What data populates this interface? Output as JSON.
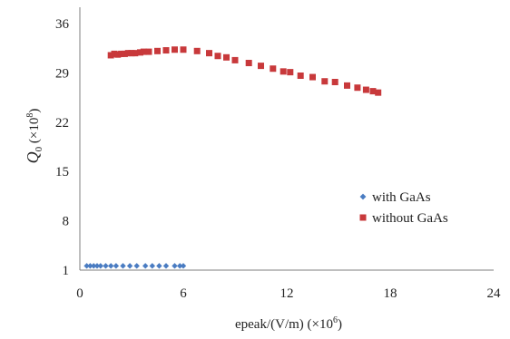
{
  "chart_data": {
    "type": "scatter",
    "xlabel": "epeak/(V/m)",
    "xlabel_multiplier": "(×10",
    "xlabel_multiplier_exp": "6",
    "xlabel_multiplier_close": ")",
    "ylabel_symbol": "Q",
    "ylabel_subscript": "0",
    "ylabel_multiplier": "(×10",
    "ylabel_multiplier_exp": "8",
    "ylabel_multiplier_close": ")",
    "xlim": [
      0,
      24
    ],
    "ylim": [
      1,
      36
    ],
    "x_ticks": [
      "0",
      "6",
      "12",
      "18",
      "24"
    ],
    "y_ticks": [
      "1",
      "8",
      "15",
      "22",
      "29",
      "36"
    ],
    "grid": false,
    "legend_position": "right-center",
    "series": [
      {
        "name": "with GaAs",
        "marker": "diamond",
        "color": "#4a7cc2",
        "x": [
          0.4,
          0.6,
          0.8,
          1.0,
          1.2,
          1.5,
          1.8,
          2.1,
          2.5,
          2.9,
          3.3,
          3.8,
          4.2,
          4.6,
          5.0,
          5.5,
          5.8,
          6.0
        ],
        "y": [
          1.6,
          1.6,
          1.6,
          1.6,
          1.6,
          1.6,
          1.6,
          1.6,
          1.6,
          1.6,
          1.6,
          1.6,
          1.6,
          1.6,
          1.6,
          1.6,
          1.6,
          1.6
        ]
      },
      {
        "name": "without GaAs",
        "marker": "square",
        "color": "#c8393b",
        "x": [
          1.8,
          2.0,
          2.2,
          2.4,
          2.6,
          2.8,
          3.0,
          3.2,
          3.5,
          3.7,
          4.0,
          4.5,
          5.0,
          5.5,
          6.0,
          6.8,
          7.5,
          8.0,
          8.5,
          9.0,
          9.8,
          10.5,
          11.2,
          11.8,
          12.2,
          12.8,
          13.5,
          14.2,
          14.8,
          15.5,
          16.1,
          16.6,
          17.0,
          17.3
        ],
        "y": [
          31.5,
          31.7,
          31.6,
          31.7,
          31.7,
          31.8,
          31.8,
          31.8,
          31.9,
          32.0,
          32.0,
          32.1,
          32.2,
          32.3,
          32.3,
          32.1,
          31.8,
          31.4,
          31.2,
          30.8,
          30.4,
          30.0,
          29.6,
          29.2,
          29.1,
          28.6,
          28.4,
          27.8,
          27.7,
          27.2,
          26.9,
          26.6,
          26.4,
          26.2
        ]
      }
    ]
  }
}
